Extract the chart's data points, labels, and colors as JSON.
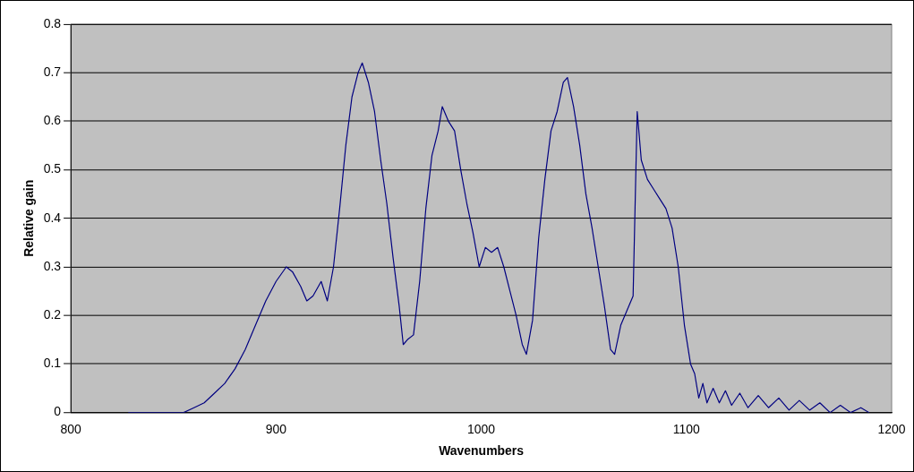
{
  "chart_data": {
    "type": "line",
    "xlabel": "Wavenumbers",
    "ylabel": "Relative gain",
    "xlim": [
      800,
      1200
    ],
    "xticks": [
      800,
      900,
      1000,
      1100,
      1200
    ],
    "ylim": [
      0,
      0.8
    ],
    "yticks": [
      0,
      0.1,
      0.2,
      0.3,
      0.4,
      0.5,
      0.6,
      0.7,
      0.8
    ],
    "grid": "y",
    "marker": "none",
    "line_style": "solid",
    "series": [
      {
        "color": "#000080",
        "x": [
          828,
          855,
          860,
          865,
          870,
          875,
          880,
          885,
          890,
          895,
          900,
          905,
          908,
          912,
          915,
          918,
          922,
          925,
          928,
          931,
          934,
          937,
          940,
          942,
          945,
          948,
          951,
          954,
          957,
          960,
          962,
          964,
          967,
          970,
          973,
          976,
          979,
          981,
          984,
          987,
          990,
          993,
          996,
          999,
          1002,
          1005,
          1008,
          1011,
          1014,
          1017,
          1020,
          1022,
          1025,
          1028,
          1031,
          1034,
          1037,
          1040,
          1042,
          1045,
          1048,
          1051,
          1054,
          1057,
          1060,
          1063,
          1065,
          1068,
          1071,
          1074,
          1076,
          1078,
          1081,
          1084,
          1087,
          1090,
          1093,
          1096,
          1099,
          1102,
          1104,
          1106,
          1108,
          1110,
          1113,
          1116,
          1119,
          1122,
          1126,
          1130,
          1135,
          1140,
          1145,
          1150,
          1155,
          1160,
          1165,
          1170,
          1175,
          1180,
          1185,
          1189
        ],
        "values": [
          0,
          0,
          0.01,
          0.02,
          0.04,
          0.06,
          0.09,
          0.13,
          0.18,
          0.23,
          0.27,
          0.3,
          0.29,
          0.26,
          0.23,
          0.24,
          0.27,
          0.23,
          0.3,
          0.42,
          0.55,
          0.65,
          0.7,
          0.72,
          0.68,
          0.62,
          0.52,
          0.43,
          0.32,
          0.22,
          0.14,
          0.15,
          0.16,
          0.27,
          0.42,
          0.53,
          0.58,
          0.63,
          0.6,
          0.58,
          0.5,
          0.43,
          0.37,
          0.3,
          0.34,
          0.33,
          0.34,
          0.3,
          0.25,
          0.2,
          0.14,
          0.12,
          0.19,
          0.36,
          0.48,
          0.58,
          0.62,
          0.68,
          0.69,
          0.63,
          0.55,
          0.45,
          0.38,
          0.3,
          0.22,
          0.13,
          0.12,
          0.18,
          0.21,
          0.24,
          0.62,
          0.52,
          0.48,
          0.46,
          0.44,
          0.42,
          0.38,
          0.3,
          0.18,
          0.1,
          0.08,
          0.03,
          0.06,
          0.02,
          0.05,
          0.02,
          0.045,
          0.015,
          0.04,
          0.01,
          0.035,
          0.01,
          0.03,
          0.005,
          0.025,
          0.005,
          0.02,
          0,
          0.015,
          0,
          0.01,
          0
        ]
      }
    ]
  }
}
